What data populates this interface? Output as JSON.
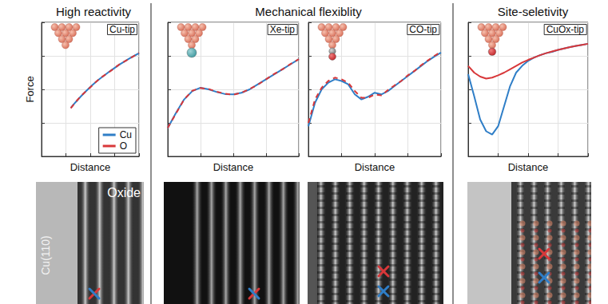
{
  "sections": [
    "High reactivity",
    "Mechanical flexiblity",
    "Site-seletivity"
  ],
  "images": {
    "surface_label": "Cu(110)",
    "oxide_label": "Oxide"
  },
  "chart_data": [
    {
      "type": "line",
      "title": "Cu-tip",
      "x_label": "Distance",
      "y_label": "Force",
      "x": [
        1.2,
        1.4,
        1.6,
        1.8,
        2.0,
        2.2,
        2.4,
        2.6,
        2.8,
        3.0,
        3.2,
        3.4,
        3.6,
        3.8,
        4.0
      ],
      "series": [
        {
          "name": "Cu",
          "color": "#2f7ec7",
          "line_style": "solid",
          "values": [
            1.45,
            1.62,
            1.78,
            1.93,
            2.07,
            2.2,
            2.32,
            2.43,
            2.54,
            2.64,
            2.74,
            2.83,
            2.92,
            3.0,
            3.08
          ]
        },
        {
          "name": "O",
          "color": "#d8383a",
          "line_style": "dashed",
          "values": [
            1.44,
            1.62,
            1.79,
            1.93,
            2.06,
            2.2,
            2.33,
            2.43,
            2.53,
            2.64,
            2.75,
            2.83,
            2.91,
            3.0,
            3.09
          ]
        }
      ],
      "xlim": [
        0,
        4
      ],
      "xticks": [
        0,
        1,
        2,
        3,
        4
      ],
      "ylim": [
        0,
        4
      ],
      "yticks": [
        0,
        1,
        2,
        3,
        4
      ],
      "grid": true,
      "tick_labels": false,
      "legend": "lower right"
    },
    {
      "type": "line",
      "title": "Xe-tip",
      "x_label": "Distance",
      "x": [
        0,
        0.25,
        0.5,
        0.75,
        1.0,
        1.25,
        1.5,
        1.75,
        2.0,
        2.25,
        2.5,
        2.75,
        3.0,
        3.25,
        3.5,
        3.75,
        4.0
      ],
      "series": [
        {
          "name": "Cu",
          "color": "#2f7ec7",
          "line_style": "solid",
          "values": [
            0.85,
            1.3,
            1.7,
            1.95,
            2.05,
            2.0,
            1.92,
            1.86,
            1.85,
            1.9,
            2.0,
            2.15,
            2.3,
            2.45,
            2.6,
            2.75,
            2.9
          ]
        },
        {
          "name": "O",
          "color": "#d8383a",
          "line_style": "dashed",
          "values": [
            0.85,
            1.28,
            1.7,
            1.96,
            2.04,
            2.01,
            1.93,
            1.87,
            1.84,
            1.9,
            2.01,
            2.14,
            2.3,
            2.46,
            2.6,
            2.76,
            2.9
          ]
        }
      ],
      "xlim": [
        0,
        4
      ],
      "xticks": [
        0,
        1,
        2,
        3,
        4
      ],
      "ylim": [
        0,
        4
      ],
      "yticks": [
        0,
        1,
        2,
        3,
        4
      ],
      "grid": true,
      "tick_labels": false
    },
    {
      "type": "line",
      "title": "CO-tip",
      "x_label": "Distance",
      "x": [
        0,
        0.2,
        0.4,
        0.6,
        0.8,
        1.0,
        1.2,
        1.4,
        1.6,
        1.8,
        2.0,
        2.2,
        2.4,
        2.6,
        2.8,
        3.0,
        3.2,
        3.4,
        3.6,
        3.8,
        4.0
      ],
      "series": [
        {
          "name": "Cu",
          "color": "#2f7ec7",
          "line_style": "solid",
          "values": [
            0.9,
            1.6,
            2.0,
            2.2,
            2.3,
            2.25,
            2.15,
            1.85,
            1.7,
            1.78,
            1.9,
            1.85,
            1.95,
            2.1,
            2.25,
            2.4,
            2.55,
            2.7,
            2.85,
            2.98,
            3.1
          ]
        },
        {
          "name": "O",
          "color": "#d8383a",
          "line_style": "dashed",
          "values": [
            1.0,
            1.7,
            2.05,
            2.25,
            2.35,
            2.3,
            2.2,
            1.95,
            1.75,
            1.75,
            1.85,
            1.82,
            1.98,
            2.12,
            2.25,
            2.42,
            2.55,
            2.72,
            2.86,
            3.0,
            3.12
          ]
        }
      ],
      "xlim": [
        0,
        4
      ],
      "xticks": [
        0,
        1,
        2,
        3,
        4
      ],
      "ylim": [
        0,
        4
      ],
      "yticks": [
        0,
        1,
        2,
        3,
        4
      ],
      "grid": true,
      "tick_labels": false
    },
    {
      "type": "line",
      "title": "CuOx-tip",
      "x_label": "Distance",
      "x": [
        0,
        0.2,
        0.4,
        0.6,
        0.8,
        1.0,
        1.2,
        1.4,
        1.6,
        1.8,
        2.0,
        2.2,
        2.4,
        2.6,
        2.8,
        3.0,
        3.2,
        3.4,
        3.6,
        3.8,
        4.0
      ],
      "series": [
        {
          "name": "Cu",
          "color": "#2f7ec7",
          "line_style": "solid",
          "values": [
            2.45,
            1.8,
            1.1,
            0.75,
            0.65,
            0.9,
            1.5,
            2.1,
            2.5,
            2.7,
            2.85,
            2.95,
            3.02,
            3.08,
            3.12,
            3.18,
            3.22,
            3.26,
            3.3,
            3.33,
            3.36
          ]
        },
        {
          "name": "O",
          "color": "#d8383a",
          "line_style": "solid",
          "values": [
            2.7,
            2.5,
            2.38,
            2.32,
            2.35,
            2.42,
            2.5,
            2.6,
            2.7,
            2.8,
            2.88,
            2.95,
            3.02,
            3.08,
            3.13,
            3.18,
            3.22,
            3.26,
            3.3,
            3.33,
            3.36
          ]
        }
      ],
      "xlim": [
        0,
        4
      ],
      "xticks": [
        0,
        1,
        2,
        3,
        4
      ],
      "ylim": [
        0,
        4
      ],
      "yticks": [
        0,
        1,
        2,
        3,
        4
      ],
      "grid": true,
      "tick_labels": false
    }
  ]
}
